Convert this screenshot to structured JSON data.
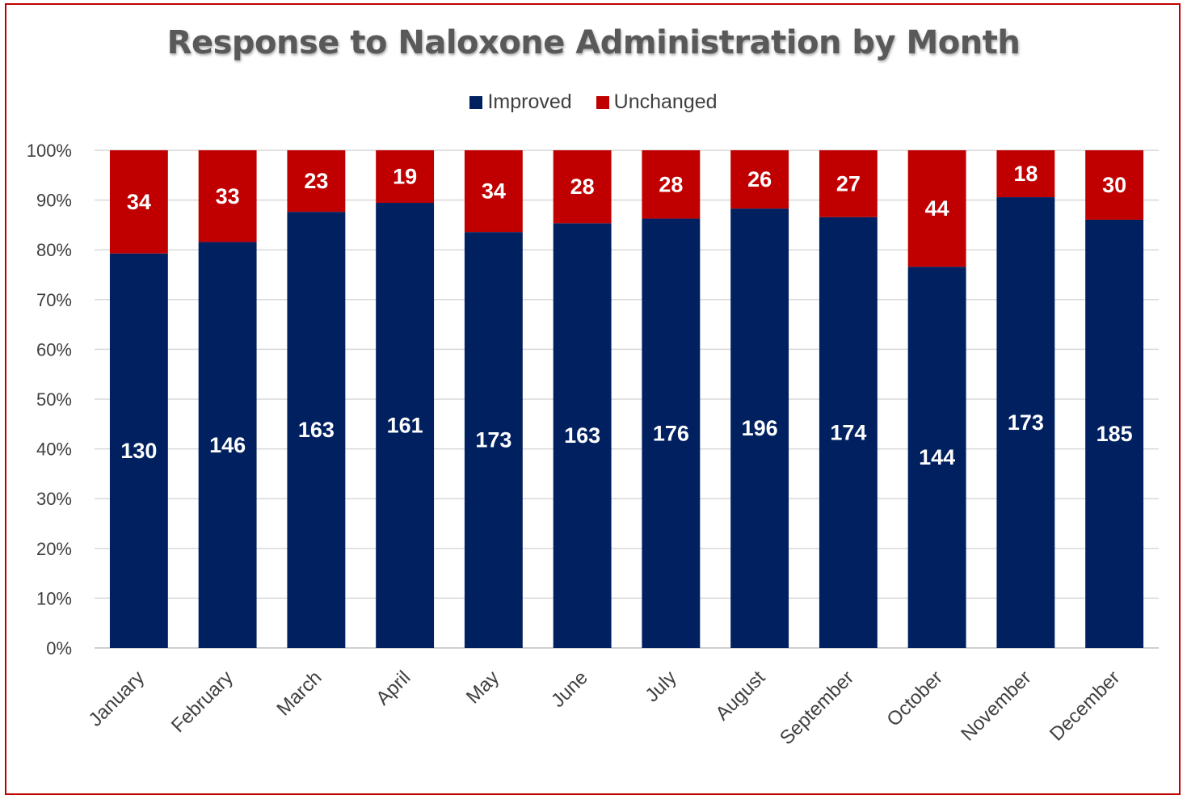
{
  "chart_data": {
    "type": "bar",
    "stacked": "percent",
    "title": "Response to Naloxone Administration by Month",
    "legend_position": "top",
    "grid": true,
    "ylim": [
      0,
      100
    ],
    "y_ticks": [
      "0%",
      "10%",
      "20%",
      "30%",
      "40%",
      "50%",
      "60%",
      "70%",
      "80%",
      "90%",
      "100%"
    ],
    "categories": [
      "January",
      "February",
      "March",
      "April",
      "May",
      "June",
      "July",
      "August",
      "September",
      "October",
      "November",
      "December"
    ],
    "series": [
      {
        "name": "Improved",
        "color": "#002060",
        "values": [
          130,
          146,
          163,
          161,
          173,
          163,
          176,
          196,
          174,
          144,
          173,
          185
        ]
      },
      {
        "name": "Unchanged",
        "color": "#c00000",
        "values": [
          34,
          33,
          23,
          19,
          34,
          28,
          28,
          26,
          27,
          44,
          18,
          30
        ]
      }
    ]
  }
}
